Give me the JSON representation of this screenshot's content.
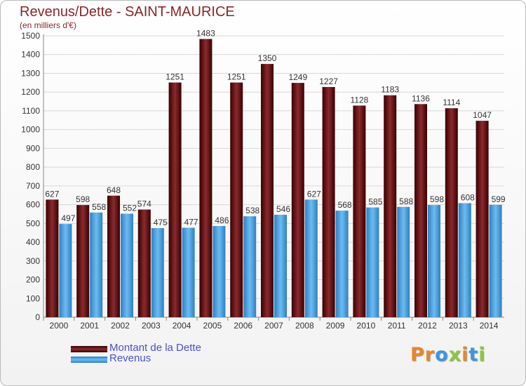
{
  "title": "Revenus/Dette - SAINT-MAURICE",
  "subtitle": "(en milliers d'€)",
  "colors": {
    "dette": "#6b0f12",
    "revenus": "#3b97de",
    "text_title": "#8b2528",
    "legend_text": "#4a52d0"
  },
  "legend": [
    {
      "label": "Montant de la Dette",
      "color_key": "dette"
    },
    {
      "label": "Revenus",
      "color_key": "revenus"
    }
  ],
  "logo": {
    "text": "Proxiti"
  },
  "chart_data": {
    "type": "bar",
    "categories": [
      "2000",
      "2001",
      "2002",
      "2003",
      "2004",
      "2005",
      "2006",
      "2007",
      "2008",
      "2009",
      "2010",
      "2011",
      "2012",
      "2013",
      "2014"
    ],
    "series": [
      {
        "name": "Montant de la Dette",
        "values": [
          627,
          598,
          648,
          574,
          1251,
          1483,
          1251,
          1350,
          1249,
          1227,
          1128,
          1183,
          1136,
          1114,
          1047
        ]
      },
      {
        "name": "Revenus",
        "values": [
          497,
          558,
          552,
          475,
          477,
          486,
          538,
          546,
          627,
          568,
          585,
          588,
          598,
          608,
          599
        ]
      }
    ],
    "ylim": [
      0,
      1500
    ],
    "yticks": [
      0,
      100,
      200,
      300,
      400,
      500,
      600,
      700,
      800,
      900,
      1000,
      1100,
      1200,
      1300,
      1400,
      1500
    ],
    "grid": true,
    "legend_position": "bottom-left"
  }
}
